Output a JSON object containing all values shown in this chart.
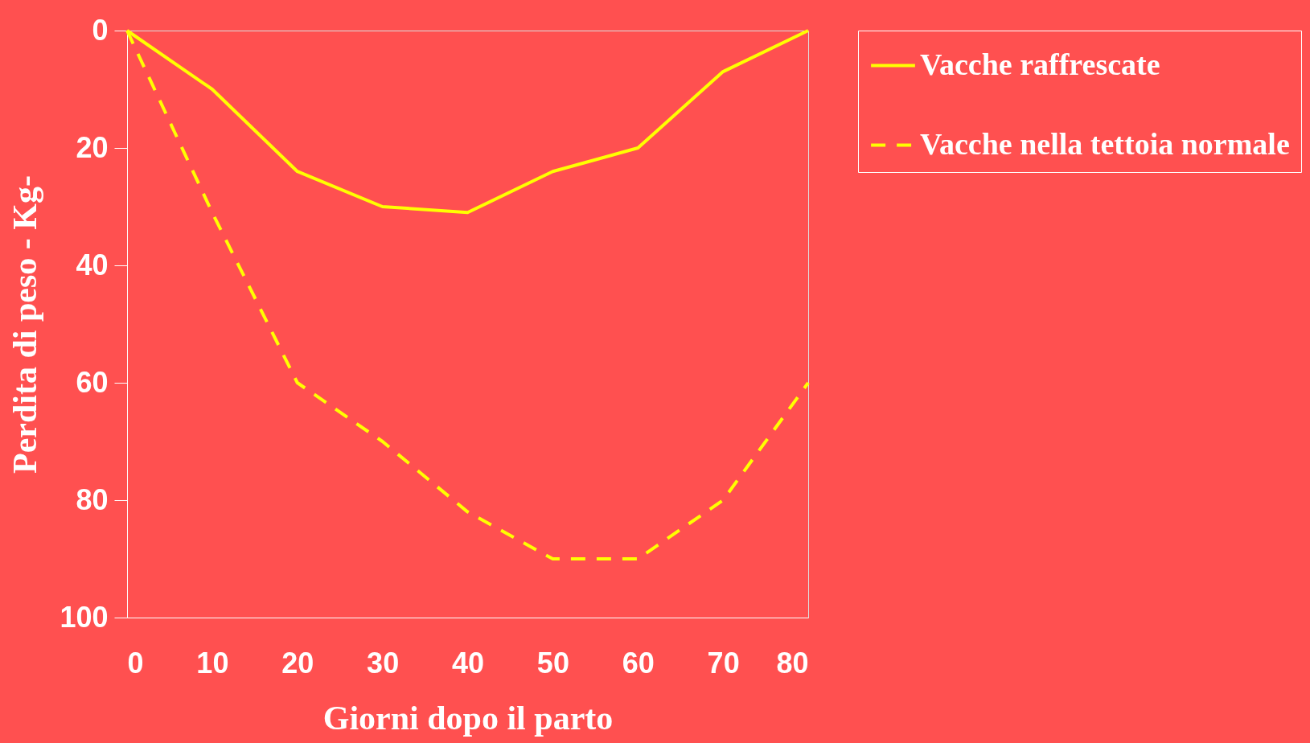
{
  "chart_data": {
    "type": "line",
    "xlabel": "Giorni dopo il parto",
    "ylabel": "Perdita di peso - Kg-",
    "x": [
      0,
      10,
      20,
      30,
      40,
      50,
      60,
      70,
      80
    ],
    "series": [
      {
        "name": "Vacche raffrescate",
        "color": "#ffff00",
        "line_style": "solid",
        "values": [
          0,
          10,
          24,
          30,
          31,
          24,
          20,
          7,
          0
        ]
      },
      {
        "name": "Vacche nella tettoia normale",
        "color": "#ffff00",
        "line_style": "dashed",
        "values": [
          0,
          31,
          60,
          70,
          82,
          90,
          90,
          80,
          60
        ]
      }
    ],
    "xlim": [
      0,
      80
    ],
    "xticks": [
      0,
      10,
      20,
      30,
      40,
      50,
      60,
      70,
      80
    ],
    "ylim": [
      100,
      0
    ],
    "yticks": [
      0,
      20,
      40,
      60,
      80,
      100
    ],
    "grid": false,
    "legend": "right",
    "marker": "none"
  }
}
